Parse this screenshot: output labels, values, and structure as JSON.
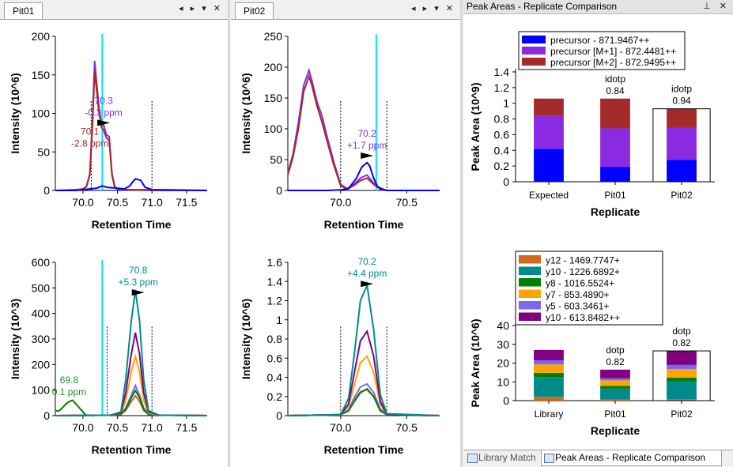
{
  "panels": {
    "pit01": {
      "tab_label": "Pit01",
      "controls": "◂ ▸ ▾ ✕"
    },
    "pit02": {
      "tab_label": "Pit02",
      "controls": "◂ ▸ ▾ ✕"
    },
    "peak_areas": {
      "title": "Peak Areas - Replicate Comparison",
      "controls": "⊥ ✕"
    }
  },
  "bottom_tabs": [
    {
      "label": "Library Match",
      "icon": "chart-icon",
      "active": false
    },
    {
      "label": "Peak Areas - Replicate Comparison",
      "icon": "chart-icon",
      "active": true
    }
  ],
  "colors": {
    "precursor": "#0000ff",
    "precursor_m1": "#8a2be2",
    "precursor_m2": "#a52a2a",
    "y12": "#d2691e",
    "y10": "#008b8b",
    "y8": "#008000",
    "y7": "#ffa500",
    "y5": "#7b68ee",
    "y10_2": "#800080",
    "retention_marker": "#00e5ff",
    "annot_green": "#2e8b2e"
  },
  "chart_data": [
    {
      "id": "pit01_precursor",
      "type": "line",
      "xlabel": "Retention Time",
      "ylabel": "Intensity (10^6)",
      "xlim": [
        69.6,
        71.8
      ],
      "ylim": [
        0,
        200
      ],
      "xticks": [
        "70.0",
        "70.5",
        "71.0",
        "71.5"
      ],
      "yticks": [
        "0",
        "50",
        "100",
        "150",
        "200"
      ],
      "retention_line": 70.28,
      "integration_bounds": [
        70.12,
        71.0
      ],
      "annotations": [
        {
          "x": 70.3,
          "y": 97,
          "lines": [
            "70.3",
            "-0.3 ppm"
          ],
          "color": "#8a2be2"
        },
        {
          "x": 70.1,
          "y": 57,
          "lines": [
            "70.1",
            "-2.8 ppm"
          ],
          "color": "#a52a2a"
        }
      ],
      "series": [
        {
          "name": "precursor [M+1]",
          "color": "#8a2be2",
          "x": [
            69.62,
            69.9,
            70.0,
            70.05,
            70.1,
            70.14,
            70.17,
            70.2,
            70.23,
            70.27,
            70.3,
            70.34,
            70.38,
            70.42,
            70.46,
            70.5,
            70.54,
            70.6,
            70.7,
            70.8,
            70.9,
            71.0,
            71.8
          ],
          "y": [
            0,
            1,
            2,
            5,
            22,
            95,
            168,
            138,
            110,
            85,
            85,
            72,
            70,
            22,
            5,
            2,
            1,
            1,
            1,
            1,
            1,
            0,
            0
          ]
        },
        {
          "name": "precursor [M+2]",
          "color": "#a52a2a",
          "x": [
            70.0,
            70.05,
            70.1,
            70.14,
            70.17,
            70.2,
            70.23,
            70.27,
            70.3,
            70.34,
            70.38,
            70.42,
            70.46,
            70.5,
            70.6,
            71.0
          ],
          "y": [
            2,
            5,
            20,
            88,
            155,
            128,
            102,
            82,
            78,
            68,
            65,
            20,
            4,
            2,
            1,
            0
          ]
        },
        {
          "name": "precursor",
          "color": "#0000ff",
          "x": [
            69.6,
            69.9,
            70.0,
            70.1,
            70.2,
            70.28,
            70.35,
            70.5,
            70.6,
            70.68,
            70.72,
            70.76,
            70.8,
            70.84,
            70.9,
            71.0,
            71.8
          ],
          "y": [
            0,
            0,
            1,
            2,
            3,
            6,
            4,
            3,
            2,
            6,
            11,
            15,
            14,
            13,
            4,
            1,
            0
          ]
        }
      ]
    },
    {
      "id": "pit01_fragment",
      "type": "line",
      "xlabel": "Retention Time",
      "ylabel": "Intensity (10^3)",
      "xlim": [
        69.6,
        71.8
      ],
      "ylim": [
        0,
        600
      ],
      "xticks": [
        "70.0",
        "70.5",
        "71.0",
        "71.5"
      ],
      "yticks": [
        "0",
        "100",
        "200",
        "300",
        "400",
        "500",
        "600"
      ],
      "retention_line": 70.28,
      "integration_bounds": [
        70.35,
        71.0
      ],
      "annotations": [
        {
          "x": 70.8,
          "y": 510,
          "lines": [
            "70.8",
            "+5.3 ppm"
          ],
          "color": "#008b8b"
        },
        {
          "x": 69.8,
          "y": 80,
          "lines": [
            "69.8",
            "0.1 ppm"
          ],
          "color": "#2e8b2e"
        }
      ],
      "series": [
        {
          "name": "y8",
          "color": "#008000",
          "x": [
            69.6,
            69.65,
            69.7,
            69.75,
            69.8,
            69.85,
            69.9,
            69.95,
            70.0,
            70.03,
            70.06
          ],
          "y": [
            20,
            18,
            30,
            45,
            55,
            60,
            45,
            30,
            15,
            5,
            0
          ]
        },
        {
          "name": "y12",
          "color": "#d2691e",
          "x": [
            69.6,
            70.4,
            70.55,
            70.62,
            70.7,
            70.76,
            70.82,
            70.88,
            70.95,
            71.1,
            71.8
          ],
          "y": [
            0,
            2,
            5,
            20,
            55,
            78,
            55,
            20,
            5,
            2,
            0
          ]
        },
        {
          "name": "y5",
          "color": "#7b68ee",
          "x": [
            69.6,
            70.4,
            70.55,
            70.62,
            70.7,
            70.76,
            70.82,
            70.88,
            70.95,
            71.1,
            71.8
          ],
          "y": [
            0,
            2,
            5,
            30,
            80,
            118,
            80,
            30,
            8,
            2,
            0
          ]
        },
        {
          "name": "y8",
          "color": "#008000",
          "x": [
            70.4,
            70.55,
            70.62,
            70.7,
            70.76,
            70.82,
            70.88,
            70.95,
            71.1
          ],
          "y": [
            0,
            5,
            25,
            70,
            98,
            70,
            25,
            5,
            0
          ]
        },
        {
          "name": "y7",
          "color": "#ffa500",
          "x": [
            69.6,
            70.4,
            70.55,
            70.62,
            70.7,
            70.76,
            70.82,
            70.88,
            70.95,
            71.1,
            71.8
          ],
          "y": [
            0,
            2,
            8,
            60,
            170,
            232,
            170,
            60,
            10,
            2,
            0
          ]
        },
        {
          "name": "y10",
          "color": "#800080",
          "x": [
            69.6,
            70.4,
            70.55,
            70.62,
            70.7,
            70.76,
            70.82,
            70.88,
            70.95,
            71.1,
            71.8
          ],
          "y": [
            0,
            2,
            10,
            90,
            240,
            325,
            240,
            90,
            15,
            2,
            0
          ]
        },
        {
          "name": "y10",
          "color": "#008b8b",
          "x": [
            69.6,
            70.4,
            70.55,
            70.62,
            70.7,
            70.76,
            70.82,
            70.88,
            70.95,
            71.1,
            71.8
          ],
          "y": [
            0,
            2,
            15,
            140,
            370,
            492,
            370,
            140,
            20,
            2,
            0
          ]
        }
      ]
    },
    {
      "id": "pit02_precursor",
      "type": "line",
      "xlabel": "Retention Time",
      "ylabel": "Intensity (10^6)",
      "xlim": [
        69.6,
        70.75
      ],
      "ylim": [
        0,
        250
      ],
      "xticks": [
        "70.0",
        "70.5"
      ],
      "yticks": [
        "0",
        "50",
        "100",
        "150",
        "200",
        "250"
      ],
      "retention_line": 70.27,
      "integration_bounds": [
        70.0,
        70.35
      ],
      "annotations": [
        {
          "x": 70.2,
          "y": 68,
          "lines": [
            "70.2",
            "+1.7 ppm"
          ],
          "color": "#8a2be2"
        }
      ],
      "series": [
        {
          "name": "precursor [M+1]",
          "color": "#8a2be2",
          "x": [
            69.6,
            69.64,
            69.68,
            69.72,
            69.76,
            69.78,
            69.82,
            69.86,
            69.9,
            69.95,
            70.0,
            70.05,
            70.1,
            70.15,
            70.2,
            70.25,
            70.3,
            70.35,
            70.75
          ],
          "y": [
            28,
            60,
            110,
            170,
            195,
            180,
            145,
            120,
            85,
            45,
            10,
            3,
            10,
            20,
            25,
            12,
            3,
            0,
            0
          ]
        },
        {
          "name": "precursor [M+2]",
          "color": "#a52a2a",
          "x": [
            69.6,
            69.64,
            69.68,
            69.72,
            69.76,
            69.78,
            69.82,
            69.86,
            69.9,
            69.95,
            70.0,
            70.05,
            70.1,
            70.15,
            70.2,
            70.25,
            70.3,
            70.35,
            70.75
          ],
          "y": [
            25,
            55,
            100,
            160,
            185,
            172,
            138,
            110,
            78,
            40,
            8,
            2,
            8,
            16,
            20,
            10,
            2,
            0,
            0
          ]
        },
        {
          "name": "precursor",
          "color": "#0000ff",
          "x": [
            69.6,
            69.9,
            70.0,
            70.06,
            70.12,
            70.16,
            70.2,
            70.22,
            70.25,
            70.28,
            70.32,
            70.35,
            70.75
          ],
          "y": [
            0,
            0,
            1,
            3,
            20,
            38,
            45,
            40,
            20,
            6,
            2,
            0,
            0
          ]
        }
      ]
    },
    {
      "id": "pit02_fragment",
      "type": "line",
      "xlabel": "Retention Time",
      "ylabel": "Intensity (10^6)",
      "xlim": [
        69.6,
        70.75
      ],
      "ylim": [
        0,
        1.6
      ],
      "xticks": [
        "70.0",
        "70.5"
      ],
      "yticks": [
        "0",
        "0.2",
        "0.4",
        "0.6",
        "0.8",
        "1",
        "1.2",
        "1.4",
        "1.6"
      ],
      "integration_bounds": [
        70.0,
        70.35
      ],
      "annotations": [
        {
          "x": 70.2,
          "y": 1.45,
          "lines": [
            "70.2",
            "+4.4 ppm"
          ],
          "color": "#008b8b"
        }
      ],
      "series": [
        {
          "name": "y12",
          "color": "#d2691e",
          "x": [
            69.6,
            70.0,
            70.06,
            70.1,
            70.15,
            70.2,
            70.25,
            70.3,
            70.35,
            70.75
          ],
          "y": [
            0,
            0.01,
            0.05,
            0.15,
            0.25,
            0.27,
            0.2,
            0.06,
            0.01,
            0
          ]
        },
        {
          "name": "y5",
          "color": "#7b68ee",
          "x": [
            69.6,
            70.0,
            70.06,
            70.1,
            70.15,
            70.2,
            70.25,
            70.3,
            70.35,
            70.75
          ],
          "y": [
            0,
            0.01,
            0.06,
            0.18,
            0.3,
            0.33,
            0.24,
            0.07,
            0.01,
            0
          ]
        },
        {
          "name": "y8",
          "color": "#008000",
          "x": [
            69.6,
            70.0,
            70.06,
            70.1,
            70.15,
            70.2,
            70.25,
            70.3,
            70.35,
            70.75
          ],
          "y": [
            0,
            0.01,
            0.05,
            0.14,
            0.24,
            0.28,
            0.2,
            0.05,
            0.01,
            0
          ]
        },
        {
          "name": "y7",
          "color": "#ffa500",
          "x": [
            69.6,
            70.0,
            70.06,
            70.1,
            70.15,
            70.2,
            70.25,
            70.3,
            70.35,
            70.75
          ],
          "y": [
            0,
            0.01,
            0.1,
            0.3,
            0.55,
            0.62,
            0.45,
            0.12,
            0.01,
            0
          ]
        },
        {
          "name": "y10",
          "color": "#800080",
          "x": [
            69.6,
            70.0,
            70.06,
            70.1,
            70.15,
            70.2,
            70.25,
            70.3,
            70.35,
            70.75
          ],
          "y": [
            0,
            0.01,
            0.12,
            0.42,
            0.78,
            0.88,
            0.62,
            0.15,
            0.01,
            0
          ]
        },
        {
          "name": "y10",
          "color": "#008b8b",
          "x": [
            69.6,
            70.0,
            70.06,
            70.1,
            70.15,
            70.2,
            70.25,
            70.3,
            70.35,
            70.75
          ],
          "y": [
            0,
            0.01,
            0.18,
            0.6,
            1.2,
            1.36,
            0.9,
            0.22,
            0.02,
            0
          ]
        }
      ]
    },
    {
      "id": "peak_areas_precursor",
      "type": "bar",
      "xlabel": "Replicate",
      "ylabel": "Peak Area (10^9)",
      "ylim": [
        0,
        1.4
      ],
      "yticks": [
        "0",
        "0.2",
        "0.4",
        "0.6",
        "0.8",
        "1",
        "1.2",
        "1.4"
      ],
      "categories": [
        "Expected",
        "Pit01",
        "Pit02"
      ],
      "selected": "Pit02",
      "labels": [
        [],
        [
          "idotp",
          "0.84"
        ],
        [
          "idotp",
          "0.94"
        ]
      ],
      "legend": "top",
      "series": [
        {
          "name": "precursor - 871.9467++",
          "color": "#0000ff",
          "values": [
            0.42,
            0.19,
            0.28
          ]
        },
        {
          "name": "precursor [M+1] - 872.4481++",
          "color": "#8a2be2",
          "values": [
            0.42,
            0.49,
            0.41
          ]
        },
        {
          "name": "precursor [M+2] - 872.9495++",
          "color": "#a52a2a",
          "values": [
            0.22,
            0.38,
            0.24
          ]
        }
      ]
    },
    {
      "id": "peak_areas_fragment",
      "type": "bar",
      "xlabel": "Replicate",
      "ylabel": "Peak Area (10^6)",
      "ylim": [
        0,
        40
      ],
      "yticks": [
        "0",
        "10",
        "20",
        "30",
        "40"
      ],
      "categories": [
        "Library",
        "Pit01",
        "Pit02"
      ],
      "selected": "Pit02",
      "labels": [
        [],
        [
          "dotp",
          "0.82"
        ],
        [
          "dotp",
          "0.82"
        ]
      ],
      "legend": "top",
      "series": [
        {
          "name": "y12 - 1469.7747+",
          "color": "#d2691e",
          "values": [
            2,
            0.5,
            0.8
          ]
        },
        {
          "name": "y10 - 1226.6892+",
          "color": "#008b8b",
          "values": [
            10.5,
            6,
            9.5
          ]
        },
        {
          "name": "y8 - 1016.5524+",
          "color": "#008000",
          "values": [
            2.3,
            1.3,
            2
          ]
        },
        {
          "name": "y7 - 853.4890+",
          "color": "#ffa500",
          "values": [
            4.5,
            3,
            4.5
          ]
        },
        {
          "name": "y5 - 603.3461+",
          "color": "#7b68ee",
          "values": [
            2.2,
            1.2,
            2.2
          ]
        },
        {
          "name": "y10 - 613.8482++",
          "color": "#800080",
          "values": [
            5.5,
            4.5,
            7.5
          ]
        }
      ]
    }
  ]
}
